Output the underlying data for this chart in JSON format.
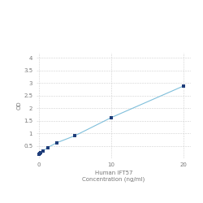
{
  "x": [
    0,
    0.078,
    0.156,
    0.313,
    0.625,
    1.25,
    2.5,
    5,
    10,
    20
  ],
  "y": [
    0.152,
    0.172,
    0.196,
    0.228,
    0.301,
    0.432,
    0.622,
    0.9,
    1.62,
    2.88
  ],
  "marker_color": "#1f3d7a",
  "line_color": "#7fbfdb",
  "marker_size": 3.5,
  "xlabel_line1": "Human IFT57",
  "xlabel_line2": "Concentration (ng/ml)",
  "ylabel": "OD",
  "xlim": [
    -0.3,
    21
  ],
  "ylim": [
    0.0,
    4.2
  ],
  "yticks": [
    0.5,
    1.0,
    1.5,
    2.0,
    2.5,
    3.0,
    3.5,
    4.0
  ],
  "ytick_labels": [
    "0.5",
    "1",
    "1.5",
    "2",
    "2.5",
    "3",
    "3.5",
    "4"
  ],
  "xticks": [
    0,
    10,
    20
  ],
  "xtick_labels": [
    "0",
    "10",
    "20"
  ],
  "grid_color": "#d0d0d0",
  "bg_color": "#ffffff",
  "label_fontsize": 5.0,
  "tick_fontsize": 5.0
}
